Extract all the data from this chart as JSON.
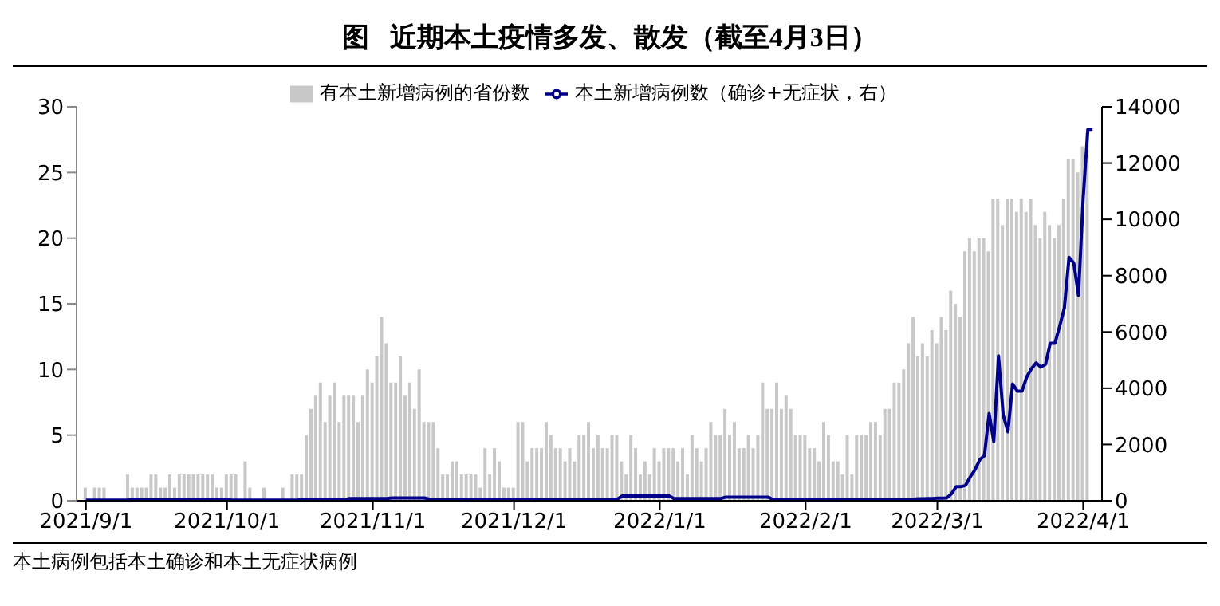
{
  "chart_data": {
    "type": "bar",
    "title": "图   近期本土疫情多发、散发（截至4月3日）",
    "annotations": [
      "本土病例包括本土确诊和本土无症状病例"
    ],
    "x": [
      "2021-09-01",
      "2021-09-02",
      "2021-09-03",
      "2021-09-04",
      "2021-09-05",
      "2021-09-06",
      "2021-09-07",
      "2021-09-08",
      "2021-09-09",
      "2021-09-10",
      "2021-09-11",
      "2021-09-12",
      "2021-09-13",
      "2021-09-14",
      "2021-09-15",
      "2021-09-16",
      "2021-09-17",
      "2021-09-18",
      "2021-09-19",
      "2021-09-20",
      "2021-09-21",
      "2021-09-22",
      "2021-09-23",
      "2021-09-24",
      "2021-09-25",
      "2021-09-26",
      "2021-09-27",
      "2021-09-28",
      "2021-09-29",
      "2021-09-30",
      "2021-10-01",
      "2021-10-02",
      "2021-10-03",
      "2021-10-04",
      "2021-10-05",
      "2021-10-06",
      "2021-10-07",
      "2021-10-08",
      "2021-10-09",
      "2021-10-10",
      "2021-10-11",
      "2021-10-12",
      "2021-10-13",
      "2021-10-14",
      "2021-10-15",
      "2021-10-16",
      "2021-10-17",
      "2021-10-18",
      "2021-10-19",
      "2021-10-20",
      "2021-10-21",
      "2021-10-22",
      "2021-10-23",
      "2021-10-24",
      "2021-10-25",
      "2021-10-26",
      "2021-10-27",
      "2021-10-28",
      "2021-10-29",
      "2021-10-30",
      "2021-10-31",
      "2021-11-01",
      "2021-11-02",
      "2021-11-03",
      "2021-11-04",
      "2021-11-05",
      "2021-11-06",
      "2021-11-07",
      "2021-11-08",
      "2021-11-09",
      "2021-11-10",
      "2021-11-11",
      "2021-11-12",
      "2021-11-13",
      "2021-11-14",
      "2021-11-15",
      "2021-11-16",
      "2021-11-17",
      "2021-11-18",
      "2021-11-19",
      "2021-11-20",
      "2021-11-21",
      "2021-11-22",
      "2021-11-23",
      "2021-11-24",
      "2021-11-25",
      "2021-11-26",
      "2021-11-27",
      "2021-11-28",
      "2021-11-29",
      "2021-11-30",
      "2021-12-01",
      "2021-12-02",
      "2021-12-03",
      "2021-12-04",
      "2021-12-05",
      "2021-12-06",
      "2021-12-07",
      "2021-12-08",
      "2021-12-09",
      "2021-12-10",
      "2021-12-11",
      "2021-12-12",
      "2021-12-13",
      "2021-12-14",
      "2021-12-15",
      "2021-12-16",
      "2021-12-17",
      "2021-12-18",
      "2021-12-19",
      "2021-12-20",
      "2021-12-21",
      "2021-12-22",
      "2021-12-23",
      "2021-12-24",
      "2021-12-25",
      "2021-12-26",
      "2021-12-27",
      "2021-12-28",
      "2021-12-29",
      "2021-12-30",
      "2021-12-31",
      "2022-01-01",
      "2022-01-02",
      "2022-01-03",
      "2022-01-04",
      "2022-01-05",
      "2022-01-06",
      "2022-01-07",
      "2022-01-08",
      "2022-01-09",
      "2022-01-10",
      "2022-01-11",
      "2022-01-12",
      "2022-01-13",
      "2022-01-14",
      "2022-01-15",
      "2022-01-16",
      "2022-01-17",
      "2022-01-18",
      "2022-01-19",
      "2022-01-20",
      "2022-01-21",
      "2022-01-22",
      "2022-01-23",
      "2022-01-24",
      "2022-01-25",
      "2022-01-26",
      "2022-01-27",
      "2022-01-28",
      "2022-01-29",
      "2022-01-30",
      "2022-01-31",
      "2022-02-01",
      "2022-02-02",
      "2022-02-03",
      "2022-02-04",
      "2022-02-05",
      "2022-02-06",
      "2022-02-07",
      "2022-02-08",
      "2022-02-09",
      "2022-02-10",
      "2022-02-11",
      "2022-02-12",
      "2022-02-13",
      "2022-02-14",
      "2022-02-15",
      "2022-02-16",
      "2022-02-17",
      "2022-02-18",
      "2022-02-19",
      "2022-02-20",
      "2022-02-21",
      "2022-02-22",
      "2022-02-23",
      "2022-02-24",
      "2022-02-25",
      "2022-02-26",
      "2022-02-27",
      "2022-02-28",
      "2022-03-01",
      "2022-03-02",
      "2022-03-03",
      "2022-03-04",
      "2022-03-05",
      "2022-03-06",
      "2022-03-07",
      "2022-03-08",
      "2022-03-09",
      "2022-03-10",
      "2022-03-11",
      "2022-03-12",
      "2022-03-13",
      "2022-03-14",
      "2022-03-15",
      "2022-03-16",
      "2022-03-17",
      "2022-03-18",
      "2022-03-19",
      "2022-03-20",
      "2022-03-21",
      "2022-03-22",
      "2022-03-23",
      "2022-03-24",
      "2022-03-25",
      "2022-03-26",
      "2022-03-27",
      "2022-03-28",
      "2022-03-29",
      "2022-03-30",
      "2022-03-31",
      "2022-04-01",
      "2022-04-02",
      "2022-04-03"
    ],
    "series": [
      {
        "name": "有本土新增病例的省份数",
        "color": "#c8c8c8",
        "values": [
          1,
          0,
          1,
          1,
          1,
          0,
          0,
          0,
          0,
          2,
          1,
          1,
          1,
          1,
          2,
          2,
          1,
          1,
          2,
          1,
          2,
          2,
          2,
          2,
          2,
          2,
          2,
          2,
          1,
          1,
          2,
          2,
          2,
          0,
          3,
          1,
          0,
          0,
          1,
          0,
          0,
          0,
          1,
          0,
          2,
          2,
          2,
          5,
          7,
          8,
          9,
          6,
          8,
          9,
          6,
          8,
          8,
          8,
          6,
          8,
          10,
          9,
          11,
          14,
          12,
          9,
          9,
          11,
          8,
          9,
          7,
          10,
          6,
          6,
          6,
          4,
          2,
          2,
          3,
          3,
          2,
          2,
          2,
          2,
          1,
          4,
          2,
          4,
          3,
          1,
          1,
          1,
          6,
          6,
          3,
          4,
          4,
          4,
          6,
          5,
          4,
          4,
          3,
          4,
          3,
          5,
          5,
          6,
          4,
          5,
          4,
          4,
          5,
          5,
          3,
          2,
          5,
          4,
          2,
          3,
          2,
          4,
          3,
          4,
          4,
          4,
          3,
          4,
          2,
          5,
          4,
          3,
          4,
          6,
          5,
          5,
          7,
          5,
          6,
          4,
          4,
          5,
          4,
          5,
          9,
          7,
          7,
          9,
          7,
          8,
          7,
          5,
          5,
          5,
          4,
          4,
          3,
          6,
          5,
          3,
          3,
          2,
          5,
          2,
          5,
          5,
          5,
          6,
          6,
          5,
          7,
          7,
          9,
          9,
          10,
          12,
          14,
          11,
          12,
          11,
          13,
          12,
          14,
          13,
          16,
          15,
          14,
          19,
          20,
          19,
          20,
          20,
          19,
          23,
          23,
          21,
          23,
          23,
          22,
          23,
          22,
          23,
          21,
          20,
          22,
          21,
          20,
          21,
          23,
          26,
          26,
          25,
          27,
          28,
          null
        ]
      },
      {
        "name": "本土新增病例数（确诊+无症状，右）",
        "type": "line",
        "axis": "y2",
        "color": "#00008b",
        "values": [
          20,
          20,
          20,
          20,
          20,
          20,
          20,
          20,
          20,
          20,
          60,
          60,
          60,
          60,
          60,
          60,
          60,
          60,
          60,
          60,
          60,
          40,
          40,
          40,
          40,
          40,
          40,
          40,
          40,
          40,
          40,
          20,
          20,
          20,
          20,
          20,
          20,
          20,
          20,
          20,
          20,
          20,
          20,
          20,
          20,
          20,
          40,
          40,
          40,
          40,
          40,
          40,
          40,
          40,
          40,
          40,
          80,
          80,
          80,
          80,
          80,
          80,
          80,
          80,
          80,
          100,
          100,
          100,
          100,
          100,
          100,
          100,
          100,
          60,
          60,
          60,
          60,
          60,
          60,
          60,
          60,
          40,
          40,
          40,
          40,
          40,
          40,
          40,
          40,
          40,
          40,
          40,
          40,
          40,
          40,
          40,
          60,
          60,
          60,
          60,
          60,
          60,
          60,
          60,
          60,
          60,
          60,
          60,
          60,
          60,
          60,
          60,
          60,
          60,
          170,
          170,
          170,
          170,
          170,
          170,
          170,
          170,
          170,
          170,
          170,
          80,
          80,
          80,
          80,
          80,
          80,
          80,
          80,
          80,
          80,
          80,
          130,
          130,
          130,
          130,
          130,
          130,
          130,
          130,
          130,
          130,
          50,
          50,
          50,
          50,
          50,
          50,
          50,
          50,
          50,
          50,
          50,
          50,
          50,
          50,
          50,
          60,
          60,
          60,
          60,
          60,
          60,
          60,
          60,
          60,
          60,
          60,
          60,
          60,
          60,
          60,
          60,
          70,
          70,
          80,
          80,
          90,
          90,
          100,
          250,
          500,
          500,
          550,
          850,
          1100,
          1450,
          1600,
          3100,
          2100,
          5150,
          3050,
          2450,
          4150,
          3900,
          3900,
          4400,
          4700,
          4900,
          4750,
          4850,
          5600,
          5600,
          6200,
          6850,
          8650,
          8450,
          7300,
          10750,
          13200,
          13200
        ]
      }
    ],
    "xlim": [
      "2021-08-30",
      "2022-04-05"
    ],
    "xticks": [
      {
        "value": "2021-09-01",
        "label": "2021/9/1"
      },
      {
        "value": "2021-10-01",
        "label": "2021/10/1"
      },
      {
        "value": "2021-11-01",
        "label": "2021/11/1"
      },
      {
        "value": "2021-12-01",
        "label": "2021/12/1"
      },
      {
        "value": "2022-01-01",
        "label": "2022/1/1"
      },
      {
        "value": "2022-02-01",
        "label": "2022/2/1"
      },
      {
        "value": "2022-03-01",
        "label": "2022/3/1"
      },
      {
        "value": "2022-04-01",
        "label": "2022/4/1"
      }
    ],
    "ylim": [
      0,
      30
    ],
    "yticks": [
      0,
      5,
      10,
      15,
      20,
      25,
      30
    ],
    "y2lim": [
      0,
      14000
    ],
    "y2ticks": [
      0,
      2000,
      4000,
      6000,
      8000,
      10000,
      12000,
      14000
    ],
    "legend": "top",
    "grid": false
  }
}
